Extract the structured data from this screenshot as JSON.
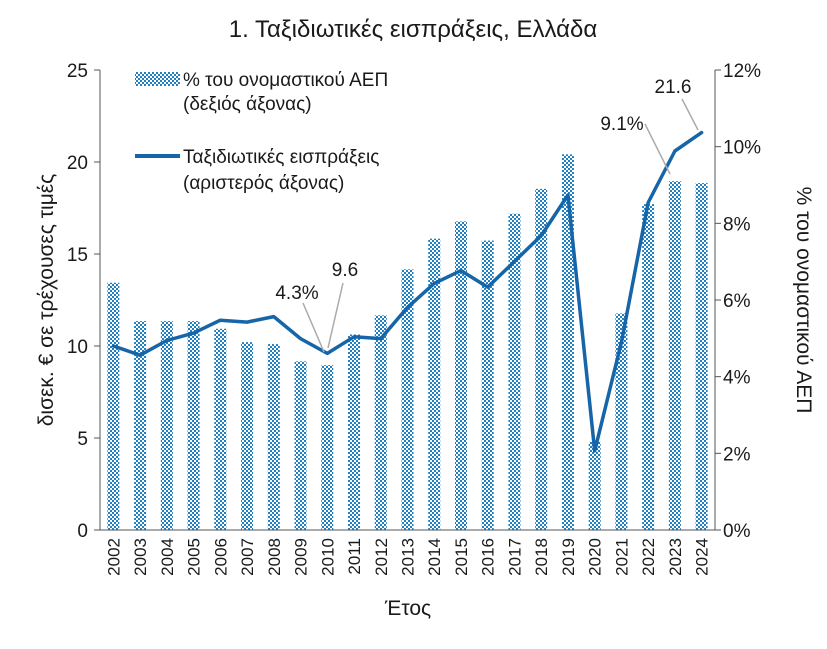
{
  "chart_data": {
    "type": "bar+line",
    "title": "1. Ταξιδιωτικές εισπράξεις, Ελλάδα",
    "xlabel": "Έτος",
    "ylabel_left": "δισεκ. € σε τρέχουσες τιμές",
    "ylabel_right": "% του ονομαστικού ΑΕΠ",
    "categories": [
      "2002",
      "2003",
      "2004",
      "2005",
      "2006",
      "2007",
      "2008",
      "2009",
      "2010",
      "2011",
      "2012",
      "2013",
      "2014",
      "2015",
      "2016",
      "2017",
      "2018",
      "2019",
      "2020",
      "2021",
      "2022",
      "2023",
      "2024"
    ],
    "ylim_left": [
      0,
      25
    ],
    "yticks_left": [
      "0",
      "5",
      "10",
      "15",
      "20",
      "25"
    ],
    "ylim_right": [
      0,
      12
    ],
    "yticks_right": [
      "0%",
      "2%",
      "4%",
      "6%",
      "8%",
      "10%",
      "12%"
    ],
    "series": [
      {
        "name": "% του ονομαστικού ΑΕΠ (δεξιός άξονας)",
        "legend_lines": [
          "% του ονομαστικού ΑΕΠ",
          "(δεξιός άξονας)"
        ],
        "type": "bar",
        "axis": "right",
        "color": "#1f7fc0",
        "values": [
          6.45,
          5.45,
          5.45,
          5.45,
          5.25,
          4.9,
          4.85,
          4.4,
          4.3,
          5.1,
          5.6,
          6.8,
          7.6,
          8.05,
          7.55,
          8.25,
          8.9,
          9.8,
          2.3,
          5.65,
          8.5,
          9.1,
          9.05
        ]
      },
      {
        "name": "Ταξιδιωτικές εισπράξεις (αριστερός άξονας)",
        "legend_lines": [
          "Ταξιδιωτικές εισπράξεις",
          "(αριστερός άξονας)"
        ],
        "type": "line",
        "axis": "left",
        "color": "#1565a8",
        "values": [
          10.0,
          9.5,
          10.3,
          10.7,
          11.4,
          11.3,
          11.6,
          10.4,
          9.6,
          10.5,
          10.4,
          12.1,
          13.4,
          14.1,
          13.2,
          14.6,
          16.0,
          18.2,
          4.3,
          10.2,
          17.8,
          20.6,
          21.6
        ]
      }
    ],
    "annotations": [
      {
        "text": "4.3%",
        "category": "2010"
      },
      {
        "text": "9.6",
        "category": "2010"
      },
      {
        "text": "9.1%",
        "category": "2023"
      },
      {
        "text": "21.6",
        "category": "2024"
      }
    ],
    "grid": false,
    "legend": "top-left"
  }
}
